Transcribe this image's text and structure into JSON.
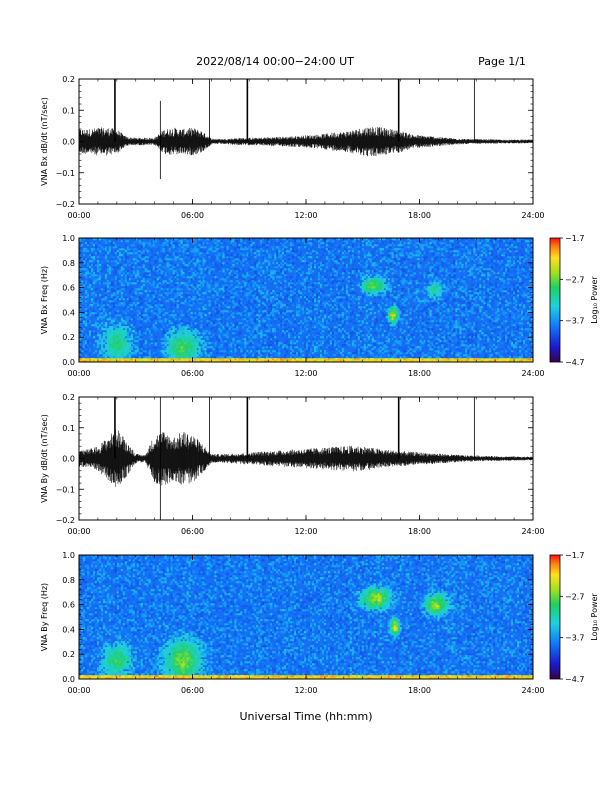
{
  "header": {
    "title": "2022/08/14  00:00−24:00 UT",
    "page": "Page 1/1"
  },
  "colors": {
    "trace": "#000000",
    "frame": "#000000"
  },
  "chart_data": [
    {
      "type": "line",
      "ylabel": "VNA Bx dB/dt (nT/sec)",
      "ylim": [
        -0.2,
        0.2
      ],
      "yticks": [
        "0.2",
        "0.1",
        "0.0",
        "−0.1",
        "−0.2"
      ],
      "xlim": [
        0,
        24
      ],
      "xticks": [
        "00:00",
        "06:00",
        "12:00",
        "18:00",
        "24:00"
      ],
      "envelope": {
        "x": [
          0,
          0.5,
          1,
          1.5,
          2,
          2.5,
          3,
          3.5,
          4,
          4.5,
          5,
          5.5,
          6,
          6.5,
          7,
          7.5,
          8,
          8.5,
          9,
          9.5,
          10,
          10.5,
          11,
          11.5,
          12,
          12.5,
          13,
          13.5,
          14,
          14.5,
          15,
          15.5,
          16,
          16.5,
          17,
          17.5,
          18,
          18.5,
          19,
          19.5,
          20,
          20.5,
          21,
          21.5,
          22,
          22.5,
          23,
          23.5,
          24
        ],
        "amplitude": [
          0.04,
          0.04,
          0.045,
          0.045,
          0.04,
          0.015,
          0.012,
          0.012,
          0.012,
          0.04,
          0.045,
          0.04,
          0.045,
          0.035,
          0.01,
          0.008,
          0.01,
          0.012,
          0.012,
          0.012,
          0.014,
          0.015,
          0.016,
          0.018,
          0.02,
          0.022,
          0.025,
          0.03,
          0.032,
          0.038,
          0.045,
          0.05,
          0.045,
          0.04,
          0.035,
          0.025,
          0.02,
          0.018,
          0.015,
          0.012,
          0.01,
          0.008,
          0.008,
          0.007,
          0.007,
          0.006,
          0.006,
          0.006,
          0.006
        ]
      },
      "spikes": [
        {
          "x": 1.9,
          "y": 0.2
        },
        {
          "x": 4.3,
          "y": 0.13
        },
        {
          "x": 4.3,
          "y": -0.12
        },
        {
          "x": 6.9,
          "y": 0.2
        },
        {
          "x": 8.9,
          "y": 0.2
        },
        {
          "x": 16.9,
          "y": 0.2
        },
        {
          "x": 20.9,
          "y": 0.2
        }
      ]
    },
    {
      "type": "heatmap",
      "ylabel": "VNA Bx Freq (Hz)",
      "ylim": [
        0,
        1.0
      ],
      "yticks": [
        "1.0",
        "0.8",
        "0.6",
        "0.4",
        "0.2",
        "0.0"
      ],
      "xlim": [
        0,
        24
      ],
      "xticks": [
        "00:00",
        "06:00",
        "12:00",
        "18:00",
        "24:00"
      ],
      "colorbar": {
        "label": "Log₁₀ Power",
        "ticks": [
          "−1.7",
          "−2.7",
          "−3.7",
          "−4.7"
        ],
        "range": [
          -4.7,
          -1.7
        ]
      },
      "features": [
        {
          "x": 2.0,
          "y": 0.15,
          "width_hours": 1.8,
          "height_hz": 0.35,
          "log_power": -2.8
        },
        {
          "x": 5.5,
          "y": 0.12,
          "width_hours": 2.0,
          "height_hz": 0.3,
          "log_power": -2.6
        },
        {
          "x": 15.6,
          "y": 0.62,
          "width_hours": 1.6,
          "height_hz": 0.15,
          "log_power": -2.5
        },
        {
          "x": 16.6,
          "y": 0.38,
          "width_hours": 0.6,
          "height_hz": 0.15,
          "log_power": -2.0
        },
        {
          "x": 18.8,
          "y": 0.58,
          "width_hours": 1.0,
          "height_hz": 0.15,
          "log_power": -2.9
        }
      ],
      "band": {
        "y_max": 0.04,
        "log_power": -2.2
      }
    },
    {
      "type": "line",
      "ylabel": "VNA By dB/dt (nT/sec)",
      "ylim": [
        -0.2,
        0.2
      ],
      "yticks": [
        "0.2",
        "0.1",
        "0.0",
        "−0.1",
        "−0.2"
      ],
      "xlim": [
        0,
        24
      ],
      "xticks": [
        "00:00",
        "06:00",
        "12:00",
        "18:00",
        "24:00"
      ],
      "envelope": {
        "x": [
          0,
          0.5,
          1,
          1.5,
          2,
          2.5,
          3,
          3.5,
          4,
          4.5,
          5,
          5.5,
          6,
          6.5,
          7,
          7.5,
          8,
          8.5,
          9,
          9.5,
          10,
          10.5,
          11,
          11.5,
          12,
          12.5,
          13,
          13.5,
          14,
          14.5,
          15,
          15.5,
          16,
          16.5,
          17,
          17.5,
          18,
          18.5,
          19,
          19.5,
          20,
          20.5,
          21,
          21.5,
          22,
          22.5,
          23,
          23.5,
          24
        ],
        "amplitude": [
          0.03,
          0.03,
          0.04,
          0.07,
          0.1,
          0.06,
          0.015,
          0.012,
          0.08,
          0.09,
          0.07,
          0.09,
          0.08,
          0.05,
          0.015,
          0.014,
          0.016,
          0.018,
          0.02,
          0.022,
          0.024,
          0.026,
          0.028,
          0.03,
          0.032,
          0.034,
          0.036,
          0.038,
          0.04,
          0.042,
          0.04,
          0.035,
          0.03,
          0.028,
          0.025,
          0.022,
          0.02,
          0.018,
          0.016,
          0.014,
          0.012,
          0.01,
          0.01,
          0.008,
          0.008,
          0.007,
          0.007,
          0.006,
          0.006
        ]
      },
      "spikes": [
        {
          "x": 1.9,
          "y": 0.2
        },
        {
          "x": 4.3,
          "y": 0.2
        },
        {
          "x": 4.3,
          "y": -0.2
        },
        {
          "x": 6.9,
          "y": 0.2
        },
        {
          "x": 8.9,
          "y": 0.2
        },
        {
          "x": 16.9,
          "y": 0.2
        },
        {
          "x": 20.9,
          "y": 0.2
        }
      ]
    },
    {
      "type": "heatmap",
      "ylabel": "VNA By Freq (Hz)",
      "ylim": [
        0,
        1.0
      ],
      "yticks": [
        "1.0",
        "0.8",
        "0.6",
        "0.4",
        "0.2",
        "0.0"
      ],
      "xlim": [
        0,
        24
      ],
      "xticks": [
        "00:00",
        "06:00",
        "12:00",
        "18:00",
        "24:00"
      ],
      "colorbar": {
        "label": "Log₁₀ Power",
        "ticks": [
          "−1.7",
          "−2.7",
          "−3.7",
          "−4.7"
        ],
        "range": [
          -4.7,
          -1.7
        ]
      },
      "features": [
        {
          "x": 2.0,
          "y": 0.15,
          "width_hours": 1.8,
          "height_hz": 0.3,
          "log_power": -2.7
        },
        {
          "x": 5.5,
          "y": 0.15,
          "width_hours": 2.2,
          "height_hz": 0.4,
          "log_power": -2.4
        },
        {
          "x": 15.7,
          "y": 0.65,
          "width_hours": 1.8,
          "height_hz": 0.2,
          "log_power": -2.2
        },
        {
          "x": 16.7,
          "y": 0.42,
          "width_hours": 0.6,
          "height_hz": 0.15,
          "log_power": -2.0
        },
        {
          "x": 18.9,
          "y": 0.6,
          "width_hours": 1.4,
          "height_hz": 0.2,
          "log_power": -2.3
        }
      ],
      "band": {
        "y_max": 0.04,
        "log_power": -2.2
      }
    }
  ],
  "xlabel": "Universal Time (hh:mm)"
}
